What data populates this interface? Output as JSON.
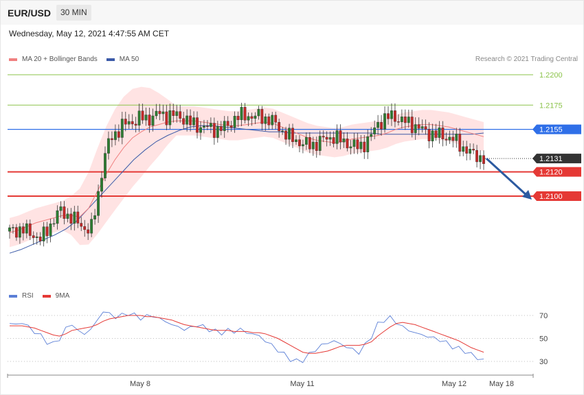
{
  "header": {
    "symbol": "EUR/USD",
    "timeframe": "30 MIN"
  },
  "timestamp": "Wednesday, May 12, 2021 4:47:55 AM CET",
  "legend": {
    "ma20": "MA 20 + Bollinger Bands",
    "ma50": "MA 50",
    "rsi": "RSI",
    "rsi_ma": "9MA"
  },
  "credit": "Research © 2021 Trading Central",
  "colors": {
    "up": "#2e7d32",
    "down": "#c62828",
    "band": "#ffd9d9",
    "ma20": "#f08080",
    "ma50": "#3b5aa8",
    "resistance_green": "#8bc34a",
    "pivot_blue": "#2f6fe8",
    "support_red": "#e53935",
    "current": "#333333",
    "arrow": "#2c5aa0",
    "rsi": "#5b7fd6",
    "rsi_ma": "#e53935"
  },
  "chart_data": [
    {
      "type": "candlestick",
      "y_scale_reference": {
        "price_at_y": [
          [
            1.22,
            109
          ],
          [
            1.21,
            286
          ]
        ]
      },
      "ylim": [
        1.2056,
        1.2217
      ],
      "x_ticks": [
        "May 8",
        "May 11",
        "May 12",
        "May 18"
      ],
      "levels": [
        {
          "label": "1.2200",
          "value": 1.22,
          "role": "resistance"
        },
        {
          "label": "1.2175",
          "value": 1.2175,
          "role": "resistance"
        },
        {
          "label": "1.2155",
          "value": 1.2155,
          "role": "pivot"
        },
        {
          "label": "1.2131",
          "value": 1.2131,
          "role": "current"
        },
        {
          "label": "1.2120",
          "value": 1.212,
          "role": "support"
        },
        {
          "label": "1.2100",
          "value": 1.21,
          "role": "support"
        }
      ],
      "close_path": [
        1.2071,
        1.2072,
        1.2073,
        1.207,
        1.2068,
        1.2064,
        1.2072,
        1.208,
        1.2088,
        1.2085,
        1.2082,
        1.2078,
        1.2074,
        1.2071,
        1.2095,
        1.2128,
        1.2146,
        1.2152,
        1.2158,
        1.216,
        1.2162,
        1.2165,
        1.2163,
        1.2166,
        1.2168,
        1.2166,
        1.2167,
        1.2166,
        1.2164,
        1.216,
        1.2158,
        1.2157,
        1.2156,
        1.2155,
        1.2156,
        1.2158,
        1.2164,
        1.2166,
        1.2167,
        1.2165,
        1.2166,
        1.2164,
        1.2162,
        1.2158,
        1.2152,
        1.2148,
        1.2146,
        1.2143,
        1.2142,
        1.2143,
        1.2146,
        1.2148,
        1.2149,
        1.2146,
        1.2144,
        1.2142,
        1.214,
        1.2144,
        1.215,
        1.216,
        1.2163,
        1.2166,
        1.2165,
        1.2162,
        1.216,
        1.2158,
        1.2155,
        1.2152,
        1.2151,
        1.215,
        1.2149,
        1.2147,
        1.2143,
        1.2139,
        1.2135,
        1.2133,
        1.2131
      ],
      "ma20_path": [
        1.207,
        1.2072,
        1.2075,
        1.2078,
        1.208,
        1.2082,
        1.2084,
        1.2084,
        1.2083,
        1.209,
        1.2104,
        1.2118,
        1.213,
        1.214,
        1.2148,
        1.2153,
        1.2157,
        1.2159,
        1.2161,
        1.2162,
        1.2162,
        1.2162,
        1.2161,
        1.216,
        1.2159,
        1.2158,
        1.2158,
        1.2159,
        1.216,
        1.2161,
        1.216,
        1.2157,
        1.2154,
        1.2151,
        1.2148,
        1.2146,
        1.2145,
        1.2144,
        1.2145,
        1.2147,
        1.2148,
        1.2149,
        1.215,
        1.2152,
        1.2155,
        1.2157,
        1.2158,
        1.2159,
        1.2159,
        1.2158,
        1.2157,
        1.2155,
        1.2153,
        1.2151,
        1.2149
      ],
      "ma50_path": [
        1.2053,
        1.2056,
        1.206,
        1.2064,
        1.2068,
        1.2073,
        1.208,
        1.209,
        1.21,
        1.211,
        1.212,
        1.213,
        1.2138,
        1.2145,
        1.215,
        1.2154,
        1.2157,
        1.2158,
        1.2158,
        1.2157,
        1.2156,
        1.2155,
        1.2154,
        1.2153,
        1.2153,
        1.2152,
        1.2152,
        1.2152,
        1.2152,
        1.2152,
        1.2152,
        1.2152,
        1.2152,
        1.2151,
        1.2151,
        1.2151,
        1.2151,
        1.2151,
        1.2151,
        1.2151,
        1.2151,
        1.2151,
        1.2152
      ],
      "projection": {
        "from": 1.2131,
        "to": 1.21
      }
    },
    {
      "type": "line",
      "title": "RSI",
      "y_ticks": [
        70,
        50,
        30
      ],
      "ylim": [
        25,
        75
      ],
      "series": [
        {
          "name": "RSI",
          "values": [
            63,
            62,
            64,
            60,
            56,
            52,
            47,
            45,
            50,
            58,
            63,
            56,
            54,
            58,
            65,
            74,
            71,
            69,
            70,
            72,
            70,
            68,
            69,
            70,
            67,
            65,
            62,
            60,
            58,
            59,
            62,
            60,
            58,
            56,
            55,
            57,
            56,
            58,
            55,
            54,
            52,
            48,
            44,
            40,
            36,
            32,
            30,
            31,
            36,
            40,
            44,
            46,
            48,
            45,
            43,
            40,
            38,
            44,
            52,
            62,
            66,
            68,
            64,
            60,
            57,
            55,
            53,
            52,
            50,
            49,
            46,
            43,
            41,
            39,
            36,
            33,
            31
          ]
        },
        {
          "name": "9MA",
          "values": [
            61,
            61,
            61,
            60,
            59,
            57,
            55,
            53,
            52,
            54,
            57,
            58,
            59,
            60,
            62,
            65,
            67,
            68,
            69,
            70,
            70,
            70,
            69,
            69,
            68,
            67,
            66,
            64,
            62,
            61,
            60,
            59,
            58,
            57,
            57,
            57,
            56,
            56,
            56,
            55,
            55,
            54,
            52,
            50,
            47,
            44,
            41,
            38,
            37,
            37,
            38,
            39,
            41,
            43,
            44,
            44,
            44,
            45,
            47,
            52,
            56,
            60,
            63,
            64,
            63,
            62,
            60,
            58,
            56,
            54,
            52,
            50,
            48,
            45,
            42,
            40,
            38
          ]
        }
      ]
    }
  ]
}
